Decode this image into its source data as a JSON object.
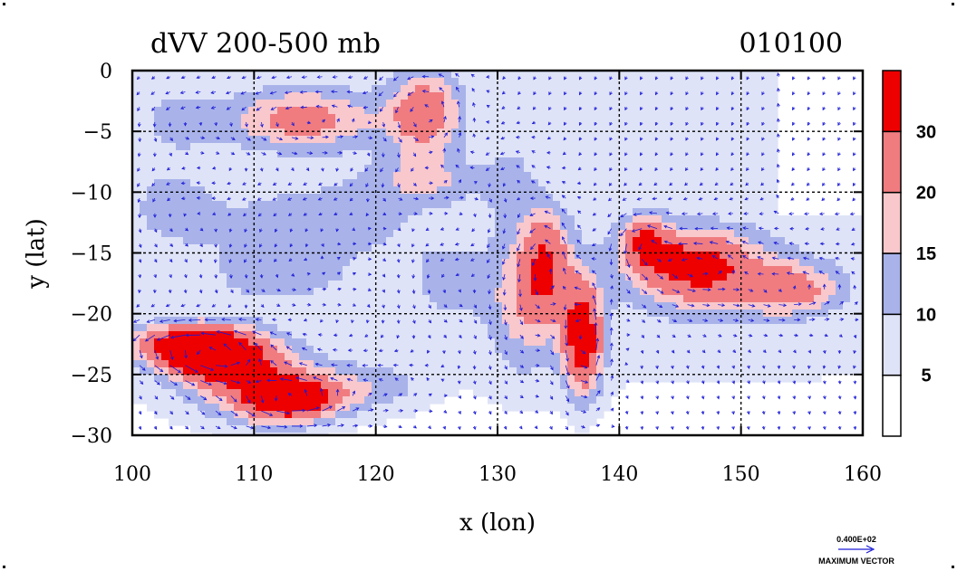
{
  "chart_data": {
    "type": "heatmap",
    "title": "dVV 200-500 mb",
    "subtitle": "010100",
    "xlabel": "x (lon)",
    "ylabel": "y (lat)",
    "xlim": [
      100,
      160
    ],
    "ylim": [
      -30,
      0
    ],
    "x_ticks": [
      100,
      110,
      120,
      130,
      140,
      150,
      160
    ],
    "y_ticks": [
      0,
      -5,
      -10,
      -15,
      -20,
      -25,
      -30
    ],
    "x_tick_labels": [
      "100",
      "110",
      "120",
      "130",
      "140",
      "150",
      "160"
    ],
    "y_tick_labels": [
      "0",
      "−5",
      "−10",
      "−15",
      "−20",
      "−25",
      "−30"
    ],
    "grid": "dashed at major ticks",
    "colorbar": {
      "placement": "right",
      "levels": [
        5,
        10,
        15,
        20,
        30
      ],
      "labels": [
        "5",
        "10",
        "15",
        "20",
        "30"
      ],
      "colors": [
        "#ffffff",
        "#dfe3f7",
        "#a9b3ea",
        "#f9c8cc",
        "#f07c80",
        "#ee0000"
      ]
    },
    "overlay": "wind vectors",
    "vector_legend": {
      "value_label": "0.400E+02",
      "caption": "MAXIMUM VECTOR",
      "color": "#1a1ad6"
    }
  }
}
